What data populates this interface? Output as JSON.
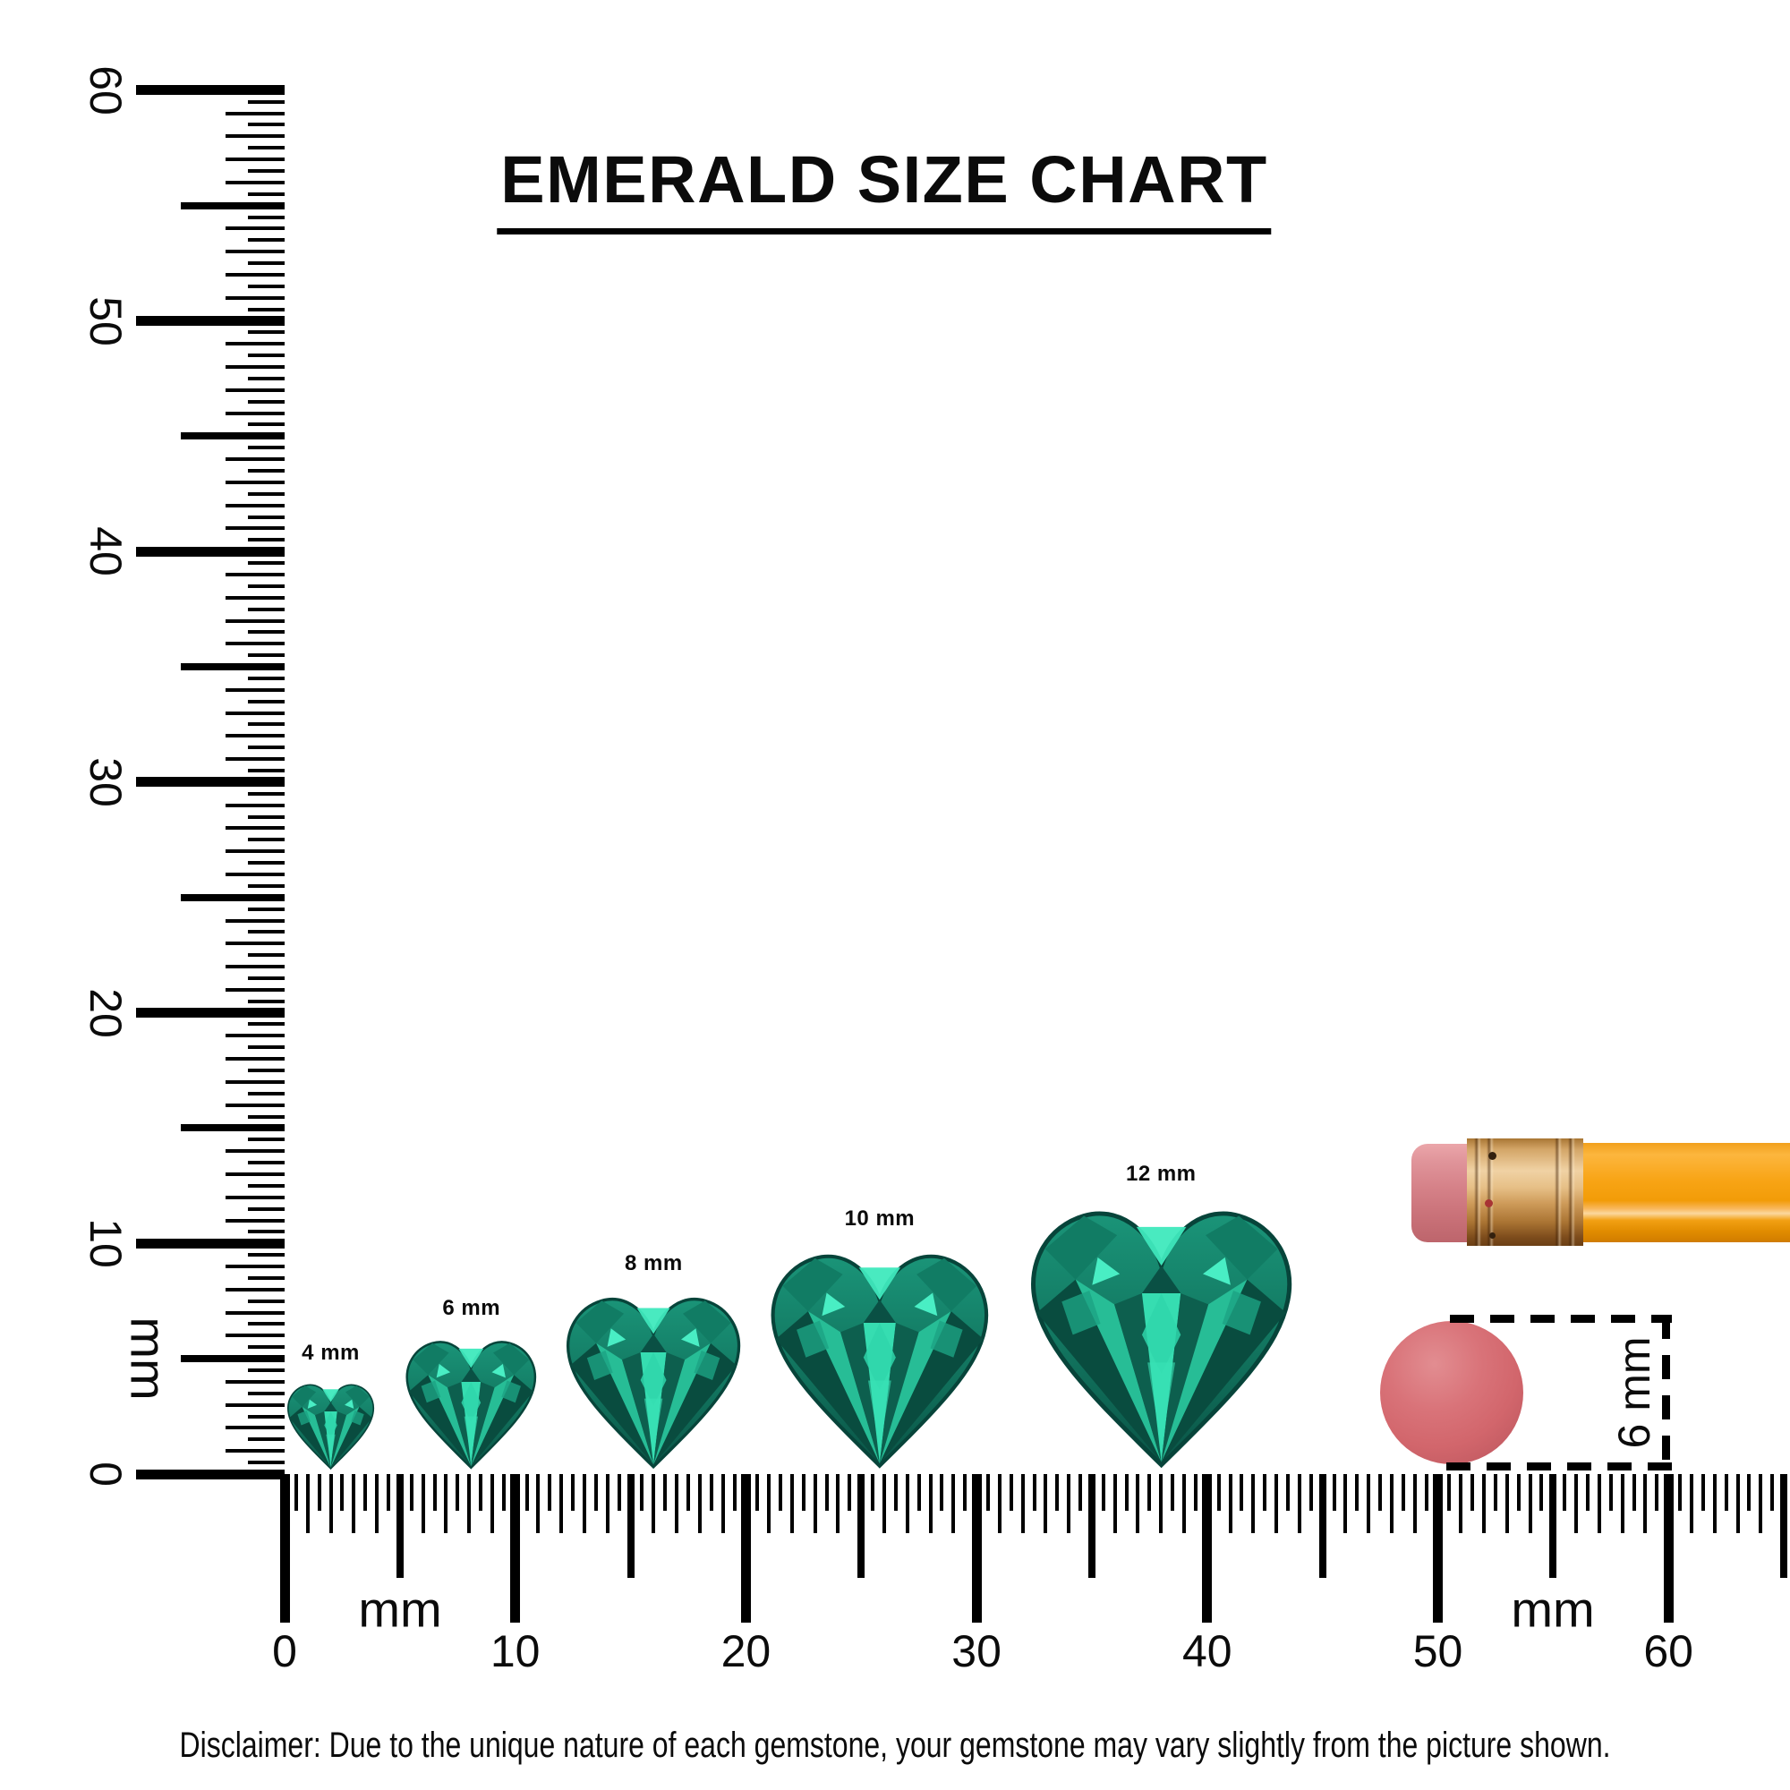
{
  "title": {
    "text": "EMERALD SIZE CHART"
  },
  "gems": {
    "stone": "emerald",
    "cut": "heart",
    "items": [
      {
        "label": "4 mm",
        "size_mm": 4,
        "center_mm": 2.0
      },
      {
        "label": "6 mm",
        "size_mm": 6,
        "center_mm": 8.1
      },
      {
        "label": "8 mm",
        "size_mm": 8,
        "center_mm": 16.0
      },
      {
        "label": "10 mm",
        "size_mm": 10,
        "center_mm": 25.8
      },
      {
        "label": "12 mm",
        "size_mm": 12,
        "center_mm": 38.0
      }
    ]
  },
  "rulers": {
    "vertical": {
      "unit": "mm",
      "min": 0,
      "max": 60,
      "minor_step_mm": 0.5,
      "major_labels": [
        "0",
        "10",
        "20",
        "30",
        "40",
        "50",
        "60"
      ]
    },
    "horizontal": {
      "unit_left": "mm",
      "unit_right": "mm",
      "min": 0,
      "max": 60,
      "minor_step_mm": 0.5,
      "major_labels": [
        "0",
        "10",
        "20",
        "30",
        "40",
        "50",
        "60"
      ]
    }
  },
  "eraser_reference": {
    "size_label": "6 mm"
  },
  "disclaimer": "Disclaimer: Due to the unique nature of each gemstone, your gemstone may vary slightly from the picture shown.",
  "colors": {
    "ink": "#000000",
    "emerald_bright": "#3ce8bc",
    "emerald_mid": "#1fa184",
    "emerald_dark": "#0d6152",
    "emerald_deep": "#094c3f",
    "pencil_orange": "#f8a415",
    "ferrule_gold": "#d3a567",
    "eraser_pink": "#d58188",
    "disc_pink": "#d2666c"
  }
}
